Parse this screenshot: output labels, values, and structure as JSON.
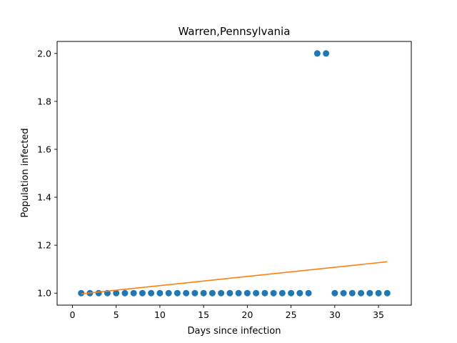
{
  "chart_data": {
    "type": "scatter",
    "title": "Warren,Pennsylvania",
    "xlabel": "Days since infection",
    "ylabel": "Population infected",
    "xlim": [
      -1.75,
      38.75
    ],
    "ylim": [
      0.95,
      2.05
    ],
    "xticks": [
      0,
      5,
      10,
      15,
      20,
      25,
      30,
      35
    ],
    "yticks": [
      1.0,
      1.2,
      1.4,
      1.6,
      1.8,
      2.0
    ],
    "ytick_labels": [
      "1.0",
      "1.2",
      "1.4",
      "1.6",
      "1.8",
      "2.0"
    ],
    "grid": false,
    "series": [
      {
        "kind": "scatter",
        "color": "#1f77b4",
        "x": [
          1,
          2,
          3,
          4,
          5,
          6,
          7,
          8,
          9,
          10,
          11,
          12,
          13,
          14,
          15,
          16,
          17,
          18,
          19,
          20,
          21,
          22,
          23,
          24,
          25,
          26,
          27,
          28,
          29,
          30,
          31,
          32,
          33,
          34,
          35,
          36
        ],
        "y": [
          1,
          1,
          1,
          1,
          1,
          1,
          1,
          1,
          1,
          1,
          1,
          1,
          1,
          1,
          1,
          1,
          1,
          1,
          1,
          1,
          1,
          1,
          1,
          1,
          1,
          1,
          1,
          2,
          2,
          1,
          1,
          1,
          1,
          1,
          1,
          1
        ]
      },
      {
        "kind": "line",
        "color": "#ff7f0e",
        "x": [
          1,
          36
        ],
        "y": [
          0.997,
          1.131
        ]
      }
    ]
  }
}
